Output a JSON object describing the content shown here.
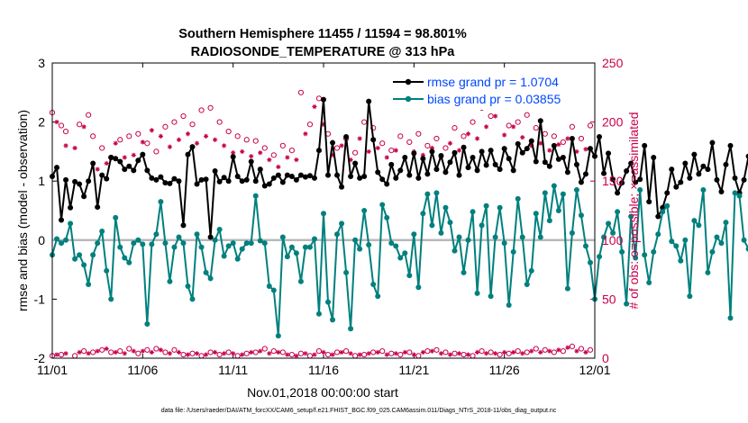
{
  "chart_data": {
    "type": "line",
    "title": "Southern Hemisphere 11455 / 11594 = 98.801%",
    "subtitle": "RADIOSONDE_TEMPERATURE @ 313 hPa",
    "xlabel": "Nov.01,2018 00:00:00 start",
    "ylabel_left": "rmse and bias (model - observation)",
    "ylabel_right": "# of obs: o=possible; ×=assimilated",
    "xlim": [
      0,
      30
    ],
    "ylim_left": [
      -2,
      3
    ],
    "ylim_right": [
      0,
      250
    ],
    "x_tick_values": [
      0,
      5,
      10,
      15,
      20,
      25,
      30
    ],
    "x_tick_labels": [
      "11/01",
      "11/06",
      "11/11",
      "11/16",
      "11/21",
      "11/26",
      "12/01"
    ],
    "y_left_ticks": [
      "-2",
      "-1",
      "0",
      "1",
      "2",
      "3"
    ],
    "y_right_ticks": [
      "0",
      "50",
      "100",
      "150",
      "200",
      "250"
    ],
    "legend": [
      "rmse grand pr = 1.0704",
      "bias grand pr = 0.03855"
    ],
    "colors": {
      "rmse": "#000000",
      "bias": "#00807e",
      "obs": "#c8004b",
      "zero": "#b8b8b8",
      "legend_text": "#0047ff"
    },
    "series": [
      {
        "name": "rmse",
        "axis": "left",
        "dt": 0.25,
        "values": [
          1.08,
          1.23,
          0.34,
          1.02,
          0.55,
          0.99,
          0.95,
          0.74,
          1.0,
          1.3,
          0.56,
          1.1,
          1.04,
          1.4,
          1.38,
          1.33,
          1.2,
          1.25,
          1.18,
          1.35,
          1.45,
          1.18,
          1.05,
          1.02,
          1.07,
          0.97,
          0.96,
          1.04,
          1.0,
          0.25,
          1.45,
          1.58,
          0.95,
          1.02,
          1.03,
          0.05,
          1.17,
          0.99,
          1.06,
          1.0,
          1.41,
          1.08,
          1.0,
          1.02,
          1.33,
          1.0,
          1.2,
          0.92,
          0.95,
          1.05,
          1.1,
          0.98,
          1.1,
          1.08,
          1.02,
          1.1,
          1.07,
          1.09,
          1.05,
          1.52,
          2.38,
          1.1,
          1.65,
          1.1,
          0.9,
          1.75,
          1.08,
          1.3,
          1.05,
          1.08,
          2.35,
          1.7,
          1.15,
          1.03,
          0.95,
          1.28,
          1.05,
          1.18,
          1.4,
          1.1,
          1.47,
          1.05,
          1.38,
          1.12,
          1.5,
          1.2,
          1.43,
          1.15,
          1.32,
          1.48,
          1.1,
          1.57,
          1.23,
          1.4,
          1.18,
          1.5,
          1.27,
          1.52,
          1.28,
          1.2,
          1.55,
          1.38,
          1.18,
          1.63,
          1.48,
          1.55,
          1.68,
          1.33,
          2.02,
          1.32,
          1.25,
          1.6,
          1.37,
          1.4,
          1.15,
          1.72,
          1.28,
          0.98,
          1.12,
          1.55,
          1.42,
          1.75,
          1.13,
          1.47,
          1.03,
          0.8,
          0.97,
          1.17,
          1.3,
          0.98,
          1.03,
          1.6,
          0.65,
          1.4,
          0.4,
          0.55,
          0.8,
          1.2,
          0.9,
          0.98,
          1.3,
          1.05,
          1.45,
          1.12,
          1.25,
          1.2,
          1.65,
          1.02,
          0.82,
          1.28,
          1.6,
          1.05,
          0.8,
          1.02,
          1.42,
          1.38
        ]
      },
      {
        "name": "bias",
        "axis": "left",
        "dt": 0.25,
        "values": [
          -0.25,
          0.02,
          -0.05,
          0.0,
          0.28,
          -0.32,
          -0.25,
          -0.42,
          -0.75,
          -0.25,
          -0.05,
          0.15,
          -0.52,
          -1.0,
          0.38,
          -0.12,
          -0.3,
          -0.38,
          -0.05,
          0.0,
          -0.07,
          -1.42,
          -0.07,
          0.1,
          0.65,
          -0.05,
          -0.7,
          -0.12,
          0.05,
          -0.05,
          -0.78,
          -1.0,
          0.1,
          -0.12,
          -0.55,
          -0.65,
          0.0,
          0.18,
          -0.27,
          -0.1,
          -0.05,
          -0.32,
          -0.15,
          -0.05,
          -0.05,
          0.75,
          -0.01,
          -0.05,
          -0.78,
          -0.85,
          -1.62,
          0.05,
          -0.28,
          -0.12,
          -0.22,
          -0.7,
          -0.12,
          -0.12,
          0.02,
          -1.25,
          0.45,
          -1.05,
          -1.35,
          0.1,
          0.28,
          -0.55,
          -1.5,
          0.0,
          -0.15,
          0.5,
          -0.08,
          -0.75,
          -0.95,
          0.6,
          0.38,
          -0.05,
          -0.1,
          -0.3,
          -0.22,
          -0.6,
          0.1,
          -0.8,
          0.45,
          0.78,
          0.25,
          0.8,
          0.12,
          0.55,
          0.3,
          -0.18,
          0.05,
          -0.55,
          0.0,
          0.48,
          -0.9,
          0.25,
          0.58,
          -0.95,
          0.05,
          0.55,
          -0.05,
          -1.1,
          -0.2,
          0.7,
          0.05,
          -0.75,
          -0.52,
          0.45,
          0.05,
          0.8,
          0.33,
          0.92,
          0.5,
          0.78,
          -0.82,
          0.12,
          0.85,
          0.42,
          -0.1,
          -0.38,
          -1.0,
          -0.28,
          0.05,
          0.28,
          0.12,
          0.48,
          -0.2,
          -1.08,
          0.4,
          -0.3,
          0.85,
          -0.25,
          -0.72,
          -0.2,
          0.1,
          0.48,
          0.58,
          -0.02,
          -0.1,
          -0.35,
          0.0,
          -0.95,
          0.33,
          0.25,
          0.85,
          -0.55,
          -0.2,
          0.05,
          -0.05,
          0.3,
          -1.32,
          0.8,
          0.75,
          0.0,
          -0.15,
          0.25,
          -0.05,
          -0.68
        ]
      }
    ],
    "obs_possible": {
      "high": [
        [
          0.0,
          208
        ],
        [
          0.5,
          197
        ],
        [
          0.75,
          192
        ],
        [
          1.5,
          198
        ],
        [
          2.0,
          206
        ],
        [
          2.25,
          188
        ],
        [
          2.75,
          178
        ],
        [
          3.25,
          170
        ],
        [
          3.75,
          185
        ],
        [
          4.25,
          188
        ],
        [
          4.75,
          190
        ],
        [
          5.25,
          182
        ],
        [
          5.75,
          175
        ],
        [
          6.25,
          196
        ],
        [
          6.75,
          200
        ],
        [
          7.25,
          205
        ],
        [
          7.75,
          198
        ],
        [
          8.25,
          210
        ],
        [
          8.75,
          212
        ],
        [
          9.25,
          200
        ],
        [
          9.75,
          192
        ],
        [
          10.25,
          188
        ],
        [
          10.75,
          185
        ],
        [
          11.25,
          184
        ],
        [
          11.75,
          178
        ],
        [
          12.25,
          172
        ],
        [
          12.75,
          180
        ],
        [
          13.25,
          176
        ],
        [
          13.75,
          225
        ],
        [
          14.25,
          198
        ],
        [
          14.75,
          220
        ],
        [
          15.25,
          190
        ],
        [
          15.75,
          178
        ],
        [
          16.25,
          186
        ],
        [
          16.75,
          174
        ],
        [
          17.25,
          200
        ],
        [
          17.75,
          195
        ],
        [
          18.25,
          182
        ],
        [
          18.75,
          176
        ],
        [
          19.25,
          188
        ],
        [
          19.75,
          183
        ],
        [
          20.25,
          190
        ],
        [
          20.75,
          180
        ],
        [
          21.25,
          186
        ],
        [
          21.75,
          178
        ],
        [
          22.25,
          195
        ],
        [
          22.75,
          188
        ],
        [
          23.25,
          200
        ],
        [
          23.75,
          212
        ],
        [
          24.25,
          205
        ],
        [
          24.75,
          216
        ],
        [
          25.25,
          197
        ],
        [
          25.75,
          200
        ],
        [
          26.25,
          206
        ],
        [
          26.75,
          195
        ],
        [
          27.25,
          190
        ],
        [
          27.75,
          188
        ],
        [
          28.25,
          183
        ],
        [
          28.75,
          196
        ],
        [
          29.25,
          186
        ],
        [
          29.75,
          197
        ]
      ],
      "low": [
        [
          0.0,
          2
        ],
        [
          0.5,
          3
        ],
        [
          1.25,
          2
        ],
        [
          1.75,
          6
        ],
        [
          2.25,
          5
        ],
        [
          2.75,
          7
        ],
        [
          3.25,
          5
        ],
        [
          3.75,
          6
        ],
        [
          4.25,
          8
        ],
        [
          4.75,
          4
        ],
        [
          5.25,
          7
        ],
        [
          5.75,
          8
        ],
        [
          6.25,
          5
        ],
        [
          6.75,
          7
        ],
        [
          7.25,
          3
        ],
        [
          7.75,
          4
        ],
        [
          8.25,
          2
        ],
        [
          8.75,
          5
        ],
        [
          9.25,
          3
        ],
        [
          9.75,
          5
        ],
        [
          10.25,
          2
        ],
        [
          10.75,
          4
        ],
        [
          11.25,
          5
        ],
        [
          11.75,
          8
        ],
        [
          12.25,
          6
        ],
        [
          12.75,
          5
        ],
        [
          13.25,
          3
        ],
        [
          13.75,
          4
        ],
        [
          14.25,
          2
        ],
        [
          14.75,
          6
        ],
        [
          15.25,
          3
        ],
        [
          15.75,
          5
        ],
        [
          16.25,
          6
        ],
        [
          16.75,
          2
        ],
        [
          17.25,
          3
        ],
        [
          17.75,
          5
        ],
        [
          18.25,
          6
        ],
        [
          18.75,
          4
        ],
        [
          19.25,
          3
        ],
        [
          19.75,
          5
        ],
        [
          20.25,
          2
        ],
        [
          20.75,
          6
        ],
        [
          21.25,
          7
        ],
        [
          21.75,
          5
        ],
        [
          22.25,
          4
        ],
        [
          22.75,
          3
        ],
        [
          23.25,
          2
        ],
        [
          23.75,
          6
        ],
        [
          24.25,
          5
        ],
        [
          24.75,
          3
        ],
        [
          25.25,
          4
        ],
        [
          25.75,
          6
        ],
        [
          26.25,
          5
        ],
        [
          26.75,
          8
        ],
        [
          27.25,
          7
        ],
        [
          27.75,
          5
        ],
        [
          28.25,
          6
        ],
        [
          28.75,
          10
        ],
        [
          29.25,
          8
        ],
        [
          29.75,
          7
        ]
      ]
    },
    "obs_assimilated": {
      "high": [
        [
          0.25,
          200
        ],
        [
          0.75,
          180
        ],
        [
          1.25,
          178
        ],
        [
          1.75,
          196
        ],
        [
          2.5,
          160
        ],
        [
          3.0,
          165
        ],
        [
          3.5,
          182
        ],
        [
          4.0,
          170
        ],
        [
          4.5,
          172
        ],
        [
          5.0,
          183
        ],
        [
          5.5,
          193
        ],
        [
          6.0,
          188
        ],
        [
          6.5,
          179
        ],
        [
          7.0,
          185
        ],
        [
          7.5,
          190
        ],
        [
          8.0,
          182
        ],
        [
          8.5,
          188
        ],
        [
          9.0,
          185
        ],
        [
          9.5,
          180
        ],
        [
          10.0,
          174
        ],
        [
          10.5,
          175
        ],
        [
          11.0,
          171
        ],
        [
          11.5,
          174
        ],
        [
          12.0,
          168
        ],
        [
          12.5,
          162
        ],
        [
          13.0,
          170
        ],
        [
          13.5,
          168
        ],
        [
          14.0,
          190
        ],
        [
          14.5,
          213
        ],
        [
          15.0,
          198
        ],
        [
          15.5,
          172
        ],
        [
          16.0,
          180
        ],
        [
          16.5,
          168
        ],
        [
          17.0,
          186
        ],
        [
          17.5,
          175
        ],
        [
          18.0,
          178
        ],
        [
          18.5,
          170
        ],
        [
          19.0,
          176
        ],
        [
          19.5,
          170
        ],
        [
          20.0,
          175
        ],
        [
          20.5,
          172
        ],
        [
          21.0,
          178
        ],
        [
          21.5,
          170
        ],
        [
          22.0,
          182
        ],
        [
          22.5,
          176
        ],
        [
          23.0,
          190
        ],
        [
          23.5,
          186
        ],
        [
          24.0,
          196
        ],
        [
          24.5,
          205
        ],
        [
          25.0,
          189
        ],
        [
          25.5,
          196
        ],
        [
          26.0,
          187
        ],
        [
          26.5,
          180
        ],
        [
          27.0,
          182
        ],
        [
          27.5,
          176
        ],
        [
          28.0,
          181
        ],
        [
          28.5,
          186
        ],
        [
          29.0,
          175
        ],
        [
          29.5,
          177
        ]
      ],
      "low": [
        [
          0.25,
          3
        ],
        [
          0.75,
          4
        ],
        [
          1.5,
          5
        ],
        [
          2.0,
          4
        ],
        [
          2.5,
          6
        ],
        [
          3.0,
          8
        ],
        [
          3.5,
          5
        ],
        [
          4.0,
          4
        ],
        [
          4.5,
          6
        ],
        [
          5.0,
          6
        ],
        [
          5.5,
          5
        ],
        [
          6.0,
          7
        ],
        [
          6.5,
          4
        ],
        [
          7.0,
          5
        ],
        [
          7.5,
          3
        ],
        [
          8.0,
          4
        ],
        [
          8.5,
          3
        ],
        [
          9.0,
          5
        ],
        [
          9.5,
          4
        ],
        [
          10.0,
          4
        ],
        [
          10.5,
          3
        ],
        [
          11.0,
          5
        ],
        [
          11.5,
          6
        ],
        [
          12.0,
          4
        ],
        [
          12.5,
          5
        ],
        [
          13.0,
          3
        ],
        [
          13.5,
          2
        ],
        [
          14.0,
          4
        ],
        [
          14.5,
          3
        ],
        [
          15.0,
          5
        ],
        [
          15.5,
          3
        ],
        [
          16.0,
          5
        ],
        [
          16.5,
          4
        ],
        [
          17.0,
          3
        ],
        [
          17.5,
          4
        ],
        [
          18.0,
          5
        ],
        [
          18.5,
          3
        ],
        [
          19.0,
          4
        ],
        [
          19.5,
          5
        ],
        [
          20.0,
          3
        ],
        [
          20.5,
          5
        ],
        [
          21.0,
          6
        ],
        [
          21.5,
          4
        ],
        [
          22.0,
          3
        ],
        [
          22.5,
          4
        ],
        [
          23.0,
          3
        ],
        [
          23.5,
          5
        ],
        [
          24.0,
          4
        ],
        [
          24.5,
          4
        ],
        [
          25.0,
          5
        ],
        [
          25.5,
          5
        ],
        [
          26.0,
          4
        ],
        [
          26.5,
          6
        ],
        [
          27.0,
          5
        ],
        [
          27.5,
          6
        ],
        [
          28.0,
          7
        ],
        [
          28.5,
          9
        ],
        [
          29.0,
          6
        ],
        [
          29.5,
          5
        ]
      ]
    }
  },
  "footer": "data file: /Users/raeder/DAI/ATM_forcXX/CAM6_setup/f.e21.FHIST_BGC.f09_025.CAM6assim.011/Diags_NTrS_2018-11/obs_diag_output.nc"
}
